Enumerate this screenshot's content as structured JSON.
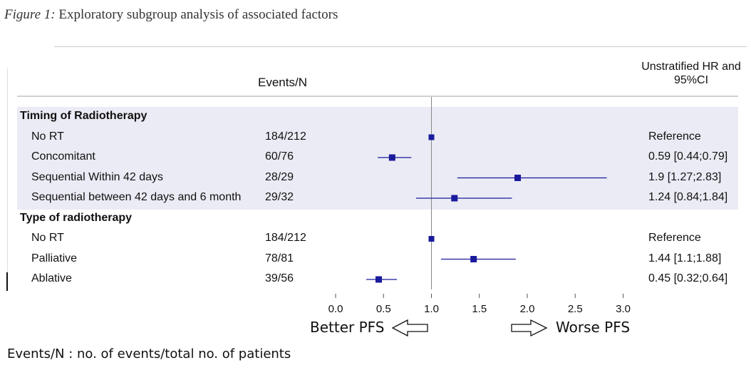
{
  "caption": {
    "label": "Figure 1:",
    "text": " Exploratory subgroup analysis of associated factors"
  },
  "headers": {
    "events": "Events/N",
    "hr": "Unstratified HR and 95%CI"
  },
  "footnote": "Events/N : no. of events/total no. of patients",
  "direction": {
    "better": "Better PFS",
    "worse": "Worse PFS"
  },
  "colors": {
    "marker": "#1a1a9c",
    "band": "#ebebf5",
    "refline": "#888888"
  },
  "chart_data": {
    "type": "forest",
    "title": "",
    "xlim": [
      0,
      3
    ],
    "xticks": [
      0.0,
      0.5,
      1.0,
      1.5,
      2.0,
      2.5,
      3.0
    ],
    "xtick_labels": [
      "0.0",
      "0.5",
      "1.0",
      "1.5",
      "2.0",
      "2.5",
      "3.0"
    ],
    "reference_line": 1.0,
    "groups": [
      {
        "name": "Timing of Radiotherapy",
        "rows": [
          {
            "label": "No RT",
            "events": "184/212",
            "hr": 1.0,
            "lo": null,
            "hi": null,
            "text": "Reference"
          },
          {
            "label": "Concomitant",
            "events": "60/76",
            "hr": 0.59,
            "lo": 0.44,
            "hi": 0.79,
            "text": "0.59 [0.44;0.79]"
          },
          {
            "label": "Sequential Within 42 days",
            "events": "28/29",
            "hr": 1.9,
            "lo": 1.27,
            "hi": 2.83,
            "text": "1.9 [1.27;2.83]"
          },
          {
            "label": "Sequential between 42 days and 6 month",
            "events": "29/32",
            "hr": 1.24,
            "lo": 0.84,
            "hi": 1.84,
            "text": "1.24 [0.84;1.84]"
          }
        ]
      },
      {
        "name": "Type of radiotherapy",
        "rows": [
          {
            "label": "No RT",
            "events": "184/212",
            "hr": 1.0,
            "lo": null,
            "hi": null,
            "text": "Reference"
          },
          {
            "label": "Palliative",
            "events": "78/81",
            "hr": 1.44,
            "lo": 1.1,
            "hi": 1.88,
            "text": "1.44 [1.1;1.88]"
          },
          {
            "label": "Ablative",
            "events": "39/56",
            "hr": 0.45,
            "lo": 0.32,
            "hi": 0.64,
            "text": "0.45 [0.32;0.64]"
          }
        ]
      }
    ]
  }
}
